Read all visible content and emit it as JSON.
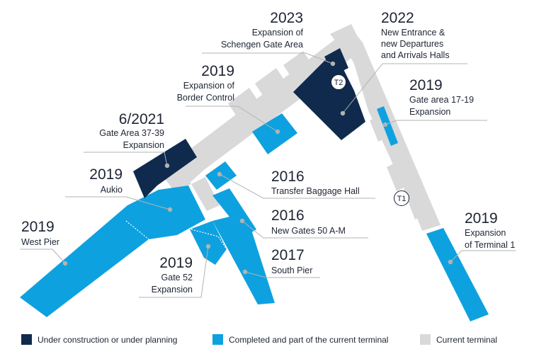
{
  "colors": {
    "under_construction": "#0f2a4c",
    "completed": "#0ea1e0",
    "current": "#d9d9d9",
    "leader": "#b3b3b3"
  },
  "terminals": {
    "t1": "T1",
    "t2": "T2"
  },
  "annotations": [
    {
      "year": "2023",
      "lines": [
        "Expansion of",
        "Schengen Gate Area"
      ],
      "status": "under_construction"
    },
    {
      "year": "2022",
      "lines": [
        "New Entrance &",
        "new Departures",
        "and Arrivals Halls"
      ],
      "status": "under_construction"
    },
    {
      "year": "2019",
      "lines": [
        "Expansion of",
        "Border Control"
      ],
      "status": "completed"
    },
    {
      "year": "2019",
      "lines": [
        "Gate area 17-19",
        "Expansion"
      ],
      "status": "completed"
    },
    {
      "year": "6/2021",
      "lines": [
        "Gate Area 37-39",
        "Expansion"
      ],
      "status": "under_construction"
    },
    {
      "year": "2016",
      "lines": [
        "Transfer Baggage Hall"
      ],
      "status": "completed"
    },
    {
      "year": "2019",
      "lines": [
        "Aukio"
      ],
      "status": "completed"
    },
    {
      "year": "2016",
      "lines": [
        "New Gates 50 A-M"
      ],
      "status": "completed"
    },
    {
      "year": "2019",
      "lines": [
        "West Pier"
      ],
      "status": "completed"
    },
    {
      "year": "2017",
      "lines": [
        "South Pier"
      ],
      "status": "completed"
    },
    {
      "year": "2019",
      "lines": [
        "Gate 52",
        "Expansion"
      ],
      "status": "completed"
    },
    {
      "year": "2019",
      "lines": [
        "Expansion",
        "of Terminal 1"
      ],
      "status": "completed"
    }
  ],
  "legend": {
    "items": [
      {
        "label": "Under construction or under planning",
        "status": "under_construction"
      },
      {
        "label": "Completed and part of the current terminal",
        "status": "completed"
      },
      {
        "label": "Current terminal",
        "status": "current"
      }
    ]
  }
}
